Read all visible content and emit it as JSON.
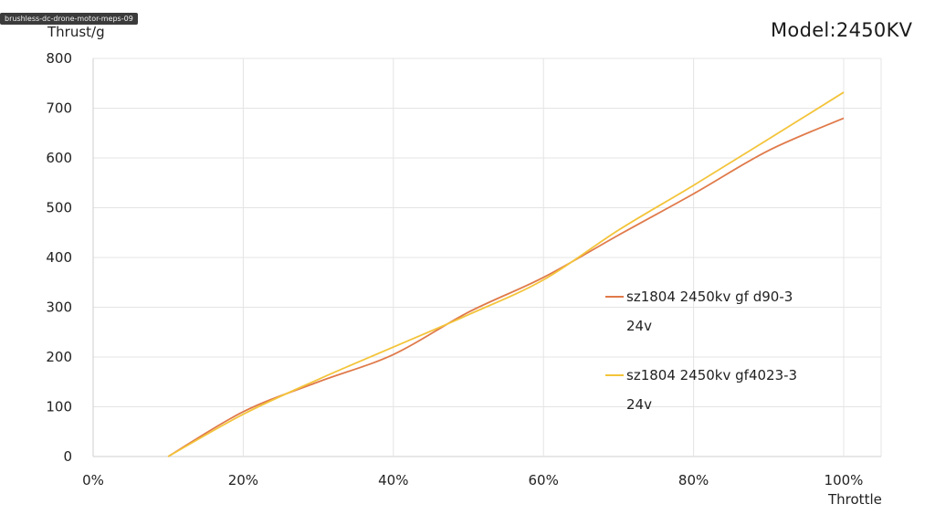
{
  "window": {
    "tab_title": "brushless-dc-drone-motor-meps-09"
  },
  "model_label": "Model:2450KV",
  "chart_data": {
    "type": "line",
    "ylabel": "Thrust/g",
    "xlabel": "Throttle",
    "xlim": [
      0,
      100
    ],
    "ylim": [
      0,
      800
    ],
    "x_ticks": [
      "0%",
      "20%",
      "40%",
      "60%",
      "80%",
      "100%"
    ],
    "y_ticks": [
      "0",
      "100",
      "200",
      "300",
      "400",
      "500",
      "600",
      "700",
      "800"
    ],
    "grid": true,
    "legend_position": "right",
    "series": [
      {
        "name": "sz1804 2450kv gf d90-3",
        "name_line2": "24v",
        "color": "#e07a4a",
        "x": [
          10,
          20,
          30,
          40,
          50,
          60,
          70,
          80,
          90,
          100
        ],
        "y": [
          0,
          90,
          150,
          205,
          290,
          360,
          445,
          528,
          615,
          680
        ]
      },
      {
        "name": "sz1804 2450kv gf4023-3",
        "name_line2": "24v",
        "color": "#f3c43a",
        "x": [
          10,
          20,
          30,
          40,
          50,
          60,
          70,
          80,
          90,
          100
        ],
        "y": [
          0,
          85,
          155,
          220,
          285,
          355,
          455,
          545,
          638,
          732
        ]
      }
    ]
  }
}
